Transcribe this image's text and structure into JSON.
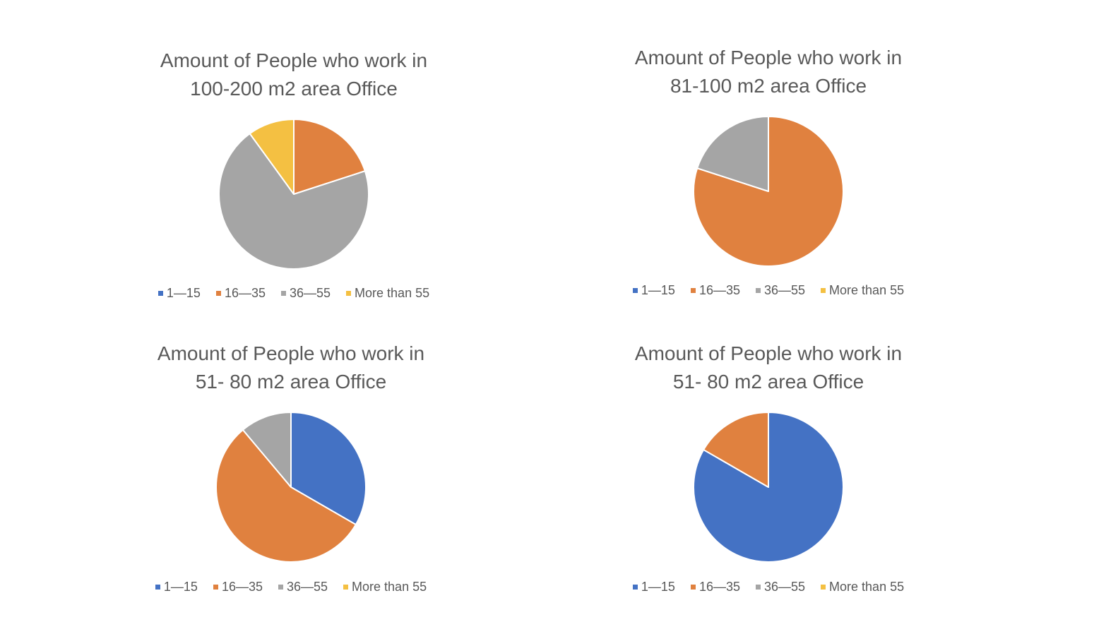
{
  "colors": {
    "1—15": "#4472C4",
    "16—35": "#E0813F",
    "36—55": "#A5A5A5",
    "More than 55": "#F4C042"
  },
  "chart_data": [
    {
      "type": "pie",
      "title_lines": [
        "Amount of People who work in",
        "100-200 m2 area Office"
      ],
      "categories": [
        "1—15",
        "16—35",
        "36—55",
        "More than 55"
      ],
      "values": [
        0,
        2,
        7,
        1
      ],
      "legend_position": "bottom"
    },
    {
      "type": "pie",
      "title_lines": [
        "Amount of People who work in",
        "81-100 m2 area Office"
      ],
      "categories": [
        "1—15",
        "16—35",
        "36—55",
        "More than 55"
      ],
      "values": [
        0,
        8,
        2,
        0
      ],
      "legend_position": "bottom"
    },
    {
      "type": "pie",
      "title_lines": [
        "Amount of People who work in",
        "51- 80 m2 area Office"
      ],
      "categories": [
        "1—15",
        "16—35",
        "36—55",
        "More than 55"
      ],
      "values": [
        3,
        5,
        1,
        0
      ],
      "legend_position": "bottom"
    },
    {
      "type": "pie",
      "title_lines": [
        "Amount of People who work in",
        "51- 80 m2 area Office"
      ],
      "categories": [
        "1—15",
        "16—35",
        "36—55",
        "More than 55"
      ],
      "values": [
        5,
        1,
        0,
        0
      ],
      "legend_position": "bottom"
    }
  ]
}
